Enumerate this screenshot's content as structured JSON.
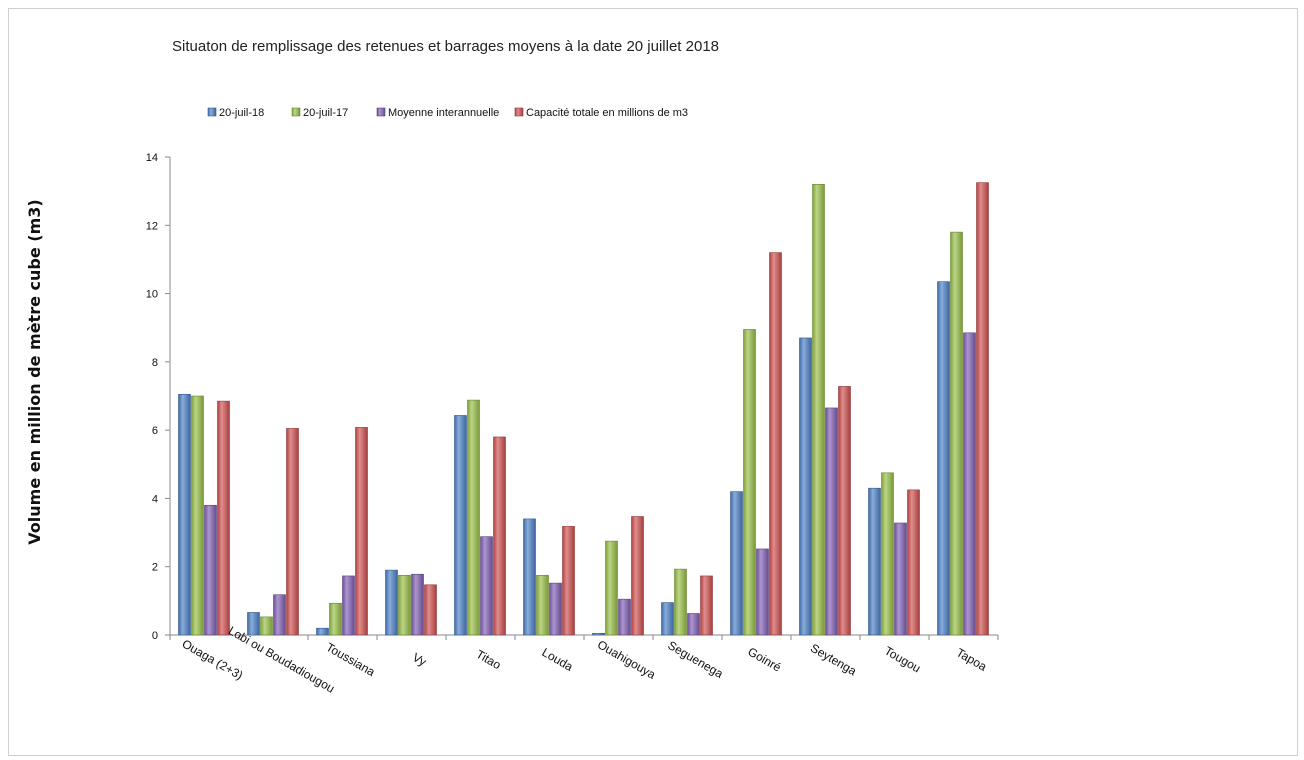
{
  "chart_data": {
    "type": "bar",
    "title": "Situaton de remplissage des retenues et barrages moyens à la date 20 juillet 2018",
    "xlabel": "",
    "ylabel": "Volume en million de mètre cube (m3)",
    "ylim": [
      0,
      14
    ],
    "yticks": [
      0,
      2,
      4,
      6,
      8,
      10,
      12,
      14
    ],
    "grid": false,
    "legend_position": "top",
    "categories": [
      "Ouaga (2+3)",
      "Lobi ou Boudadiougou",
      "Toussiana",
      "Vy",
      "Titao",
      "Louda",
      "Ouahigouya",
      "Seguenega",
      "Goinré",
      "Seytenga",
      "Tougou",
      "Tapoa"
    ],
    "series": [
      {
        "name": "20-juil-18",
        "color": "#4a7fc6",
        "values": [
          7.05,
          0.66,
          0.2,
          1.9,
          6.43,
          3.4,
          0.05,
          0.95,
          4.2,
          8.7,
          4.3,
          10.35
        ]
      },
      {
        "name": "20-juil-17",
        "color": "#97bf45",
        "values": [
          7.0,
          0.53,
          0.93,
          1.75,
          6.88,
          1.75,
          2.75,
          1.93,
          8.95,
          13.2,
          4.75,
          11.8
        ]
      },
      {
        "name": "Moyenne interannuelle",
        "color": "#7f5eb3",
        "values": [
          3.8,
          1.18,
          1.73,
          1.78,
          2.88,
          1.52,
          1.05,
          0.63,
          2.52,
          6.65,
          3.28,
          8.85
        ]
      },
      {
        "name": "Capacité totale en millions de m3",
        "color": "#cf4f4f",
        "values": [
          6.85,
          6.05,
          6.08,
          1.47,
          5.8,
          3.18,
          3.47,
          1.73,
          11.2,
          7.28,
          4.25,
          13.25
        ]
      }
    ]
  }
}
